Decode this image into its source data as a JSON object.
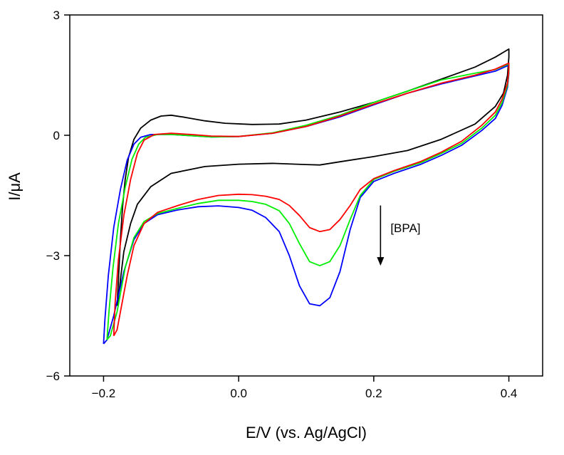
{
  "chart_data": {
    "type": "line",
    "title": "",
    "xlabel": "E/V (vs. Ag/AgCl)",
    "ylabel": "I/μA",
    "xlim": [
      -0.25,
      0.45
    ],
    "ylim": [
      -6,
      3
    ],
    "x_ticks": [
      -0.2,
      0.0,
      0.2,
      0.4
    ],
    "x_tick_labels": [
      "−0.2",
      "0.0",
      "0.2",
      "0.4"
    ],
    "y_ticks": [
      3,
      0,
      -3,
      -6
    ],
    "y_tick_labels": [
      "3",
      "0",
      "−3",
      "−6"
    ],
    "grid": false,
    "annotation": {
      "text": "[BPA]",
      "arrow_x": 0.21,
      "arrow_y_from": -1.75,
      "arrow_y_to": -3.25
    },
    "series": [
      {
        "name": "black",
        "color": "#000000",
        "points": [
          [
            -0.18,
            -4.25
          ],
          [
            -0.178,
            -3.6
          ],
          [
            -0.175,
            -2.6
          ],
          [
            -0.172,
            -1.8
          ],
          [
            -0.168,
            -1.1
          ],
          [
            -0.163,
            -0.55
          ],
          [
            -0.155,
            -0.1
          ],
          [
            -0.145,
            0.18
          ],
          [
            -0.13,
            0.38
          ],
          [
            -0.115,
            0.48
          ],
          [
            -0.1,
            0.5
          ],
          [
            -0.08,
            0.45
          ],
          [
            -0.05,
            0.36
          ],
          [
            -0.02,
            0.3
          ],
          [
            0.02,
            0.27
          ],
          [
            0.06,
            0.28
          ],
          [
            0.1,
            0.38
          ],
          [
            0.15,
            0.58
          ],
          [
            0.2,
            0.82
          ],
          [
            0.25,
            1.1
          ],
          [
            0.3,
            1.4
          ],
          [
            0.35,
            1.7
          ],
          [
            0.38,
            1.95
          ],
          [
            0.4,
            2.15
          ],
          [
            0.4,
            1.95
          ],
          [
            0.398,
            1.5
          ],
          [
            0.392,
            1.05
          ],
          [
            0.38,
            0.72
          ],
          [
            0.35,
            0.28
          ],
          [
            0.3,
            -0.1
          ],
          [
            0.25,
            -0.38
          ],
          [
            0.2,
            -0.53
          ],
          [
            0.15,
            -0.66
          ],
          [
            0.12,
            -0.74
          ],
          [
            0.1,
            -0.73
          ],
          [
            0.05,
            -0.7
          ],
          [
            0.0,
            -0.72
          ],
          [
            -0.05,
            -0.78
          ],
          [
            -0.1,
            -0.95
          ],
          [
            -0.13,
            -1.28
          ],
          [
            -0.15,
            -1.72
          ],
          [
            -0.16,
            -2.2
          ],
          [
            -0.17,
            -2.9
          ],
          [
            -0.175,
            -3.6
          ],
          [
            -0.178,
            -4.05
          ],
          [
            -0.18,
            -4.25
          ]
        ]
      },
      {
        "name": "blue",
        "color": "#0000ff",
        "points": [
          [
            -0.2,
            -5.2
          ],
          [
            -0.198,
            -4.6
          ],
          [
            -0.193,
            -3.5
          ],
          [
            -0.185,
            -2.3
          ],
          [
            -0.175,
            -1.35
          ],
          [
            -0.165,
            -0.62
          ],
          [
            -0.155,
            -0.22
          ],
          [
            -0.145,
            -0.05
          ],
          [
            -0.13,
            0.02
          ],
          [
            -0.1,
            0.02
          ],
          [
            -0.07,
            -0.01
          ],
          [
            -0.04,
            -0.04
          ],
          [
            0.0,
            -0.03
          ],
          [
            0.05,
            0.05
          ],
          [
            0.1,
            0.22
          ],
          [
            0.15,
            0.46
          ],
          [
            0.2,
            0.76
          ],
          [
            0.25,
            1.05
          ],
          [
            0.3,
            1.28
          ],
          [
            0.35,
            1.48
          ],
          [
            0.38,
            1.6
          ],
          [
            0.4,
            1.75
          ],
          [
            0.4,
            1.55
          ],
          [
            0.398,
            1.2
          ],
          [
            0.39,
            0.75
          ],
          [
            0.38,
            0.42
          ],
          [
            0.36,
            0.12
          ],
          [
            0.33,
            -0.25
          ],
          [
            0.3,
            -0.5
          ],
          [
            0.27,
            -0.72
          ],
          [
            0.23,
            -0.95
          ],
          [
            0.2,
            -1.15
          ],
          [
            0.18,
            -1.55
          ],
          [
            0.165,
            -2.35
          ],
          [
            0.15,
            -3.4
          ],
          [
            0.135,
            -4.05
          ],
          [
            0.12,
            -4.25
          ],
          [
            0.105,
            -4.2
          ],
          [
            0.09,
            -3.75
          ],
          [
            0.075,
            -3.0
          ],
          [
            0.06,
            -2.4
          ],
          [
            0.04,
            -2.05
          ],
          [
            0.02,
            -1.87
          ],
          [
            0.0,
            -1.8
          ],
          [
            -0.03,
            -1.76
          ],
          [
            -0.06,
            -1.78
          ],
          [
            -0.09,
            -1.86
          ],
          [
            -0.12,
            -1.98
          ],
          [
            -0.14,
            -2.2
          ],
          [
            -0.155,
            -2.6
          ],
          [
            -0.17,
            -3.4
          ],
          [
            -0.185,
            -4.5
          ],
          [
            -0.195,
            -5.1
          ],
          [
            -0.2,
            -5.2
          ]
        ]
      },
      {
        "name": "green",
        "color": "#00ee00",
        "points": [
          [
            -0.195,
            -5.1
          ],
          [
            -0.192,
            -4.4
          ],
          [
            -0.186,
            -3.3
          ],
          [
            -0.178,
            -2.2
          ],
          [
            -0.168,
            -1.3
          ],
          [
            -0.158,
            -0.6
          ],
          [
            -0.148,
            -0.22
          ],
          [
            -0.138,
            -0.05
          ],
          [
            -0.12,
            0.02
          ],
          [
            -0.1,
            0.02
          ],
          [
            -0.07,
            -0.01
          ],
          [
            -0.04,
            -0.04
          ],
          [
            0.0,
            -0.03
          ],
          [
            0.05,
            0.06
          ],
          [
            0.1,
            0.25
          ],
          [
            0.15,
            0.5
          ],
          [
            0.2,
            0.82
          ],
          [
            0.25,
            1.1
          ],
          [
            0.3,
            1.38
          ],
          [
            0.35,
            1.55
          ],
          [
            0.38,
            1.64
          ],
          [
            0.4,
            1.78
          ],
          [
            0.4,
            1.6
          ],
          [
            0.398,
            1.25
          ],
          [
            0.39,
            0.82
          ],
          [
            0.38,
            0.5
          ],
          [
            0.36,
            0.18
          ],
          [
            0.33,
            -0.2
          ],
          [
            0.3,
            -0.45
          ],
          [
            0.27,
            -0.68
          ],
          [
            0.23,
            -0.9
          ],
          [
            0.2,
            -1.1
          ],
          [
            0.18,
            -1.5
          ],
          [
            0.165,
            -2.1
          ],
          [
            0.15,
            -2.75
          ],
          [
            0.135,
            -3.15
          ],
          [
            0.12,
            -3.25
          ],
          [
            0.105,
            -3.15
          ],
          [
            0.09,
            -2.7
          ],
          [
            0.075,
            -2.2
          ],
          [
            0.06,
            -1.88
          ],
          [
            0.04,
            -1.72
          ],
          [
            0.02,
            -1.65
          ],
          [
            0.0,
            -1.62
          ],
          [
            -0.03,
            -1.62
          ],
          [
            -0.06,
            -1.7
          ],
          [
            -0.09,
            -1.82
          ],
          [
            -0.12,
            -1.95
          ],
          [
            -0.14,
            -2.15
          ],
          [
            -0.155,
            -2.55
          ],
          [
            -0.168,
            -3.3
          ],
          [
            -0.18,
            -4.4
          ],
          [
            -0.19,
            -5.0
          ],
          [
            -0.195,
            -5.1
          ]
        ]
      },
      {
        "name": "red",
        "color": "#ff0000",
        "points": [
          [
            -0.185,
            -5.0
          ],
          [
            -0.183,
            -4.2
          ],
          [
            -0.178,
            -3.1
          ],
          [
            -0.17,
            -2.0
          ],
          [
            -0.16,
            -1.1
          ],
          [
            -0.15,
            -0.45
          ],
          [
            -0.14,
            -0.12
          ],
          [
            -0.125,
            0.02
          ],
          [
            -0.1,
            0.05
          ],
          [
            -0.07,
            0.02
          ],
          [
            -0.04,
            -0.02
          ],
          [
            0.0,
            -0.03
          ],
          [
            0.05,
            0.05
          ],
          [
            0.1,
            0.22
          ],
          [
            0.15,
            0.48
          ],
          [
            0.2,
            0.78
          ],
          [
            0.25,
            1.05
          ],
          [
            0.3,
            1.3
          ],
          [
            0.35,
            1.5
          ],
          [
            0.38,
            1.65
          ],
          [
            0.4,
            1.8
          ],
          [
            0.4,
            1.65
          ],
          [
            0.398,
            1.3
          ],
          [
            0.39,
            0.9
          ],
          [
            0.38,
            0.58
          ],
          [
            0.36,
            0.25
          ],
          [
            0.33,
            -0.15
          ],
          [
            0.3,
            -0.42
          ],
          [
            0.27,
            -0.65
          ],
          [
            0.23,
            -0.88
          ],
          [
            0.2,
            -1.08
          ],
          [
            0.18,
            -1.35
          ],
          [
            0.165,
            -1.75
          ],
          [
            0.15,
            -2.1
          ],
          [
            0.135,
            -2.35
          ],
          [
            0.12,
            -2.4
          ],
          [
            0.105,
            -2.3
          ],
          [
            0.09,
            -2.0
          ],
          [
            0.075,
            -1.75
          ],
          [
            0.06,
            -1.6
          ],
          [
            0.04,
            -1.52
          ],
          [
            0.02,
            -1.48
          ],
          [
            0.0,
            -1.47
          ],
          [
            -0.03,
            -1.5
          ],
          [
            -0.06,
            -1.6
          ],
          [
            -0.09,
            -1.75
          ],
          [
            -0.12,
            -1.92
          ],
          [
            -0.14,
            -2.2
          ],
          [
            -0.155,
            -2.75
          ],
          [
            -0.165,
            -3.5
          ],
          [
            -0.175,
            -4.4
          ],
          [
            -0.18,
            -4.85
          ],
          [
            -0.185,
            -5.0
          ]
        ]
      }
    ]
  }
}
